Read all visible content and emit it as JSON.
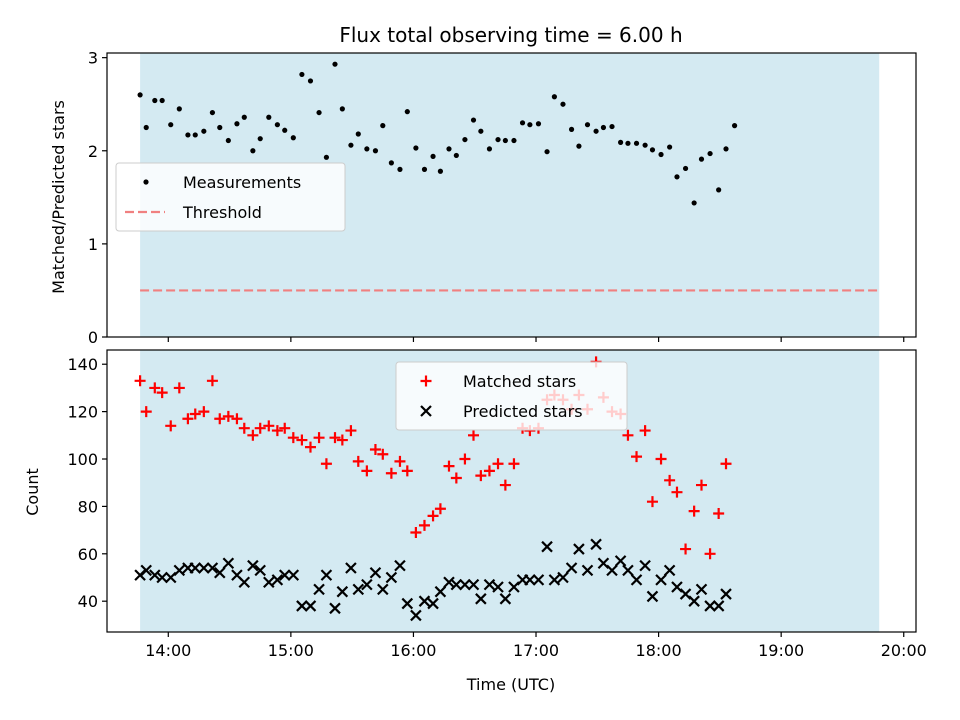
{
  "chart_data": [
    {
      "type": "scatter",
      "title": "Flux total observing time = 6.00 h",
      "ylabel": "Matched/Predicted stars",
      "xlabel": "",
      "x_unit": "hours UTC",
      "xlim": [
        13.5,
        20.1
      ],
      "ylim": [
        0,
        3.05
      ],
      "yticks": [
        0,
        1,
        2,
        3
      ],
      "xticks": [
        14,
        15,
        16,
        17,
        18,
        19,
        20
      ],
      "grid": false,
      "shaded_span": {
        "from": 13.77,
        "to": 19.8,
        "color": "#add8e6"
      },
      "legend": {
        "placement": "center-left",
        "entries": [
          "Measurements",
          "Threshold"
        ]
      },
      "series": [
        {
          "name": "Measurements",
          "kind": "scatter",
          "color": "#000000",
          "points": [
            [
              13.77,
              2.6
            ],
            [
              13.82,
              2.25
            ],
            [
              13.89,
              2.54
            ],
            [
              13.95,
              2.54
            ],
            [
              14.02,
              2.28
            ],
            [
              14.09,
              2.45
            ],
            [
              14.16,
              2.17
            ],
            [
              14.22,
              2.17
            ],
            [
              14.29,
              2.21
            ],
            [
              14.36,
              2.41
            ],
            [
              14.42,
              2.25
            ],
            [
              14.49,
              2.11
            ],
            [
              14.56,
              2.29
            ],
            [
              14.62,
              2.36
            ],
            [
              14.69,
              2.0
            ],
            [
              14.75,
              2.13
            ],
            [
              14.82,
              2.36
            ],
            [
              14.89,
              2.28
            ],
            [
              14.95,
              2.22
            ],
            [
              15.02,
              2.14
            ],
            [
              15.09,
              2.82
            ],
            [
              15.16,
              2.75
            ],
            [
              15.23,
              2.41
            ],
            [
              15.29,
              1.93
            ],
            [
              15.36,
              2.93
            ],
            [
              15.42,
              2.45
            ],
            [
              15.49,
              2.06
            ],
            [
              15.55,
              2.18
            ],
            [
              15.62,
              2.02
            ],
            [
              15.69,
              2.0
            ],
            [
              15.75,
              2.27
            ],
            [
              15.82,
              1.87
            ],
            [
              15.89,
              1.8
            ],
            [
              15.95,
              2.42
            ],
            [
              16.02,
              2.03
            ],
            [
              16.09,
              1.8
            ],
            [
              16.16,
              1.94
            ],
            [
              16.22,
              1.78
            ],
            [
              16.29,
              2.02
            ],
            [
              16.35,
              1.95
            ],
            [
              16.42,
              2.12
            ],
            [
              16.49,
              2.33
            ],
            [
              16.55,
              2.21
            ],
            [
              16.62,
              2.02
            ],
            [
              16.69,
              2.12
            ],
            [
              16.75,
              2.11
            ],
            [
              16.82,
              2.11
            ],
            [
              16.89,
              2.3
            ],
            [
              16.95,
              2.28
            ],
            [
              17.02,
              2.29
            ],
            [
              17.09,
              1.99
            ],
            [
              17.15,
              2.58
            ],
            [
              17.22,
              2.5
            ],
            [
              17.29,
              2.23
            ],
            [
              17.35,
              2.05
            ],
            [
              17.42,
              2.28
            ],
            [
              17.49,
              2.21
            ],
            [
              17.55,
              2.25
            ],
            [
              17.62,
              2.26
            ],
            [
              17.69,
              2.09
            ],
            [
              17.75,
              2.08
            ],
            [
              17.82,
              2.08
            ],
            [
              17.89,
              2.06
            ],
            [
              17.95,
              2.01
            ],
            [
              18.02,
              1.96
            ],
            [
              18.09,
              2.04
            ],
            [
              18.15,
              1.72
            ],
            [
              18.22,
              1.81
            ],
            [
              18.29,
              1.44
            ],
            [
              18.35,
              1.91
            ],
            [
              18.42,
              1.97
            ],
            [
              18.49,
              1.58
            ],
            [
              18.55,
              2.02
            ],
            [
              18.62,
              2.27
            ]
          ]
        },
        {
          "name": "Threshold",
          "kind": "line",
          "color": "#f08080",
          "dash": "dashed",
          "x": [
            13.77,
            19.8
          ],
          "y": [
            0.5,
            0.5
          ]
        }
      ]
    },
    {
      "type": "scatter",
      "title": "",
      "ylabel": "Count",
      "xlabel": "Time (UTC)",
      "x_unit": "hours UTC",
      "xlim": [
        13.5,
        20.1
      ],
      "ylim": [
        27,
        146
      ],
      "yticks": [
        40,
        60,
        80,
        100,
        120,
        140
      ],
      "xticks": [
        14,
        15,
        16,
        17,
        18,
        19,
        20
      ],
      "xtick_labels": [
        "14:00",
        "15:00",
        "16:00",
        "17:00",
        "18:00",
        "19:00",
        "20:00"
      ],
      "grid": false,
      "shaded_span": {
        "from": 13.77,
        "to": 19.8,
        "color": "#add8e6"
      },
      "legend": {
        "placement": "top-center",
        "entries": [
          "Matched stars",
          "Predicted stars"
        ]
      },
      "series": [
        {
          "name": "Matched stars",
          "marker": "plus",
          "color": "#ff0000",
          "points": [
            [
              13.77,
              133
            ],
            [
              13.82,
              120
            ],
            [
              13.89,
              130
            ],
            [
              13.95,
              128
            ],
            [
              14.02,
              114
            ],
            [
              14.09,
              130
            ],
            [
              14.16,
              117
            ],
            [
              14.22,
              119
            ],
            [
              14.29,
              120
            ],
            [
              14.36,
              133
            ],
            [
              14.42,
              117
            ],
            [
              14.49,
              118
            ],
            [
              14.56,
              117
            ],
            [
              14.62,
              113
            ],
            [
              14.69,
              110
            ],
            [
              14.75,
              113
            ],
            [
              14.82,
              114
            ],
            [
              14.89,
              112
            ],
            [
              14.95,
              113
            ],
            [
              15.02,
              109
            ],
            [
              15.09,
              108
            ],
            [
              15.16,
              105
            ],
            [
              15.23,
              109
            ],
            [
              15.29,
              98
            ],
            [
              15.36,
              109
            ],
            [
              15.42,
              108
            ],
            [
              15.49,
              112
            ],
            [
              15.55,
              99
            ],
            [
              15.62,
              95
            ],
            [
              15.69,
              104
            ],
            [
              15.75,
              102
            ],
            [
              15.82,
              94
            ],
            [
              15.89,
              99
            ],
            [
              15.95,
              95
            ],
            [
              16.02,
              69
            ],
            [
              16.09,
              72
            ],
            [
              16.16,
              76
            ],
            [
              16.22,
              79
            ],
            [
              16.29,
              97
            ],
            [
              16.35,
              92
            ],
            [
              16.42,
              100
            ],
            [
              16.49,
              110
            ],
            [
              16.55,
              93
            ],
            [
              16.62,
              95
            ],
            [
              16.69,
              98
            ],
            [
              16.75,
              89
            ],
            [
              16.82,
              98
            ],
            [
              16.89,
              113
            ],
            [
              16.95,
              112
            ],
            [
              17.02,
              113
            ],
            [
              17.09,
              125
            ],
            [
              17.15,
              127
            ],
            [
              17.22,
              125
            ],
            [
              17.29,
              121
            ],
            [
              17.35,
              127
            ],
            [
              17.42,
              121
            ],
            [
              17.49,
              141
            ],
            [
              17.55,
              126
            ],
            [
              17.62,
              120
            ],
            [
              17.69,
              119
            ],
            [
              17.75,
              110
            ],
            [
              17.82,
              101
            ],
            [
              17.89,
              112
            ],
            [
              17.95,
              82
            ],
            [
              18.02,
              100
            ],
            [
              18.09,
              91
            ],
            [
              18.15,
              86
            ],
            [
              18.22,
              62
            ],
            [
              18.29,
              78
            ],
            [
              18.35,
              89
            ],
            [
              18.42,
              60
            ],
            [
              18.49,
              77
            ],
            [
              18.55,
              98
            ]
          ]
        },
        {
          "name": "Predicted stars",
          "marker": "x",
          "color": "#000000",
          "points": [
            [
              13.77,
              51
            ],
            [
              13.82,
              53
            ],
            [
              13.89,
              51
            ],
            [
              13.95,
              50
            ],
            [
              14.02,
              50
            ],
            [
              14.09,
              53
            ],
            [
              14.16,
              54
            ],
            [
              14.22,
              54
            ],
            [
              14.29,
              54
            ],
            [
              14.36,
              54
            ],
            [
              14.42,
              52
            ],
            [
              14.49,
              56
            ],
            [
              14.56,
              51
            ],
            [
              14.62,
              48
            ],
            [
              14.69,
              55
            ],
            [
              14.75,
              53
            ],
            [
              14.82,
              48
            ],
            [
              14.89,
              49
            ],
            [
              14.95,
              51
            ],
            [
              15.02,
              51
            ],
            [
              15.09,
              38
            ],
            [
              15.16,
              38
            ],
            [
              15.23,
              45
            ],
            [
              15.29,
              51
            ],
            [
              15.36,
              37
            ],
            [
              15.42,
              44
            ],
            [
              15.49,
              54
            ],
            [
              15.55,
              45
            ],
            [
              15.62,
              47
            ],
            [
              15.69,
              52
            ],
            [
              15.75,
              45
            ],
            [
              15.82,
              50
            ],
            [
              15.89,
              55
            ],
            [
              15.95,
              39
            ],
            [
              16.02,
              34
            ],
            [
              16.09,
              40
            ],
            [
              16.16,
              39
            ],
            [
              16.22,
              44
            ],
            [
              16.29,
              48
            ],
            [
              16.35,
              47
            ],
            [
              16.42,
              47
            ],
            [
              16.49,
              47
            ],
            [
              16.55,
              41
            ],
            [
              16.62,
              47
            ],
            [
              16.69,
              46
            ],
            [
              16.75,
              41
            ],
            [
              16.82,
              46
            ],
            [
              16.89,
              49
            ],
            [
              16.95,
              49
            ],
            [
              17.02,
              49
            ],
            [
              17.09,
              63
            ],
            [
              17.15,
              49
            ],
            [
              17.22,
              50
            ],
            [
              17.29,
              54
            ],
            [
              17.35,
              62
            ],
            [
              17.42,
              53
            ],
            [
              17.49,
              64
            ],
            [
              17.55,
              56
            ],
            [
              17.62,
              53
            ],
            [
              17.69,
              57
            ],
            [
              17.75,
              53
            ],
            [
              17.82,
              49
            ],
            [
              17.89,
              55
            ],
            [
              17.95,
              42
            ],
            [
              18.02,
              49
            ],
            [
              18.09,
              53
            ],
            [
              18.15,
              46
            ],
            [
              18.22,
              43
            ],
            [
              18.29,
              40
            ],
            [
              18.35,
              45
            ],
            [
              18.42,
              38
            ],
            [
              18.49,
              38
            ],
            [
              18.55,
              43
            ]
          ]
        }
      ]
    }
  ]
}
